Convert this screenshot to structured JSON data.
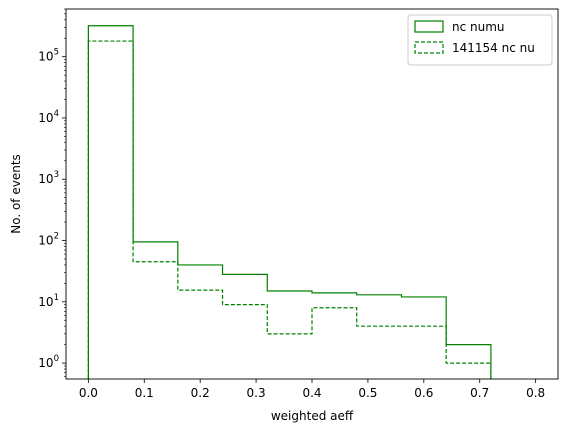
{
  "chart_data": {
    "type": "histogram",
    "title": "",
    "xlabel": "weighted aeff",
    "ylabel": "No. of events",
    "xlim": [
      -0.04,
      0.84
    ],
    "ylim": [
      0.55,
      600000
    ],
    "yscale": "log",
    "grid": false,
    "legend_position": "top-right",
    "color": "#008000",
    "x_ticks": [
      {
        "value": 0.0,
        "label": "0.0"
      },
      {
        "value": 0.1,
        "label": "0.1"
      },
      {
        "value": 0.2,
        "label": "0.2"
      },
      {
        "value": 0.3,
        "label": "0.3"
      },
      {
        "value": 0.4,
        "label": "0.4"
      },
      {
        "value": 0.5,
        "label": "0.5"
      },
      {
        "value": 0.6,
        "label": "0.6"
      },
      {
        "value": 0.7,
        "label": "0.7"
      },
      {
        "value": 0.8,
        "label": "0.8"
      }
    ],
    "y_ticks": [
      {
        "value": 1,
        "base": "10",
        "exp": "0"
      },
      {
        "value": 10,
        "base": "10",
        "exp": "1"
      },
      {
        "value": 100,
        "base": "10",
        "exp": "2"
      },
      {
        "value": 1000,
        "base": "10",
        "exp": "3"
      },
      {
        "value": 10000,
        "base": "10",
        "exp": "4"
      },
      {
        "value": 100000,
        "base": "10",
        "exp": "5"
      }
    ],
    "bin_edges": [
      0.0,
      0.08,
      0.16,
      0.24,
      0.32,
      0.4,
      0.48,
      0.56,
      0.64,
      0.72,
      0.8
    ],
    "series": [
      {
        "name": "nc numu",
        "linestyle": "solid",
        "values": [
          320000,
          95,
          40,
          28,
          15,
          14,
          13,
          12,
          2,
          0
        ]
      },
      {
        "name": "141154 nc nu",
        "linestyle": "dashed",
        "values": [
          180000,
          45,
          15.5,
          9,
          3,
          8,
          4,
          4,
          1,
          0
        ]
      }
    ]
  }
}
